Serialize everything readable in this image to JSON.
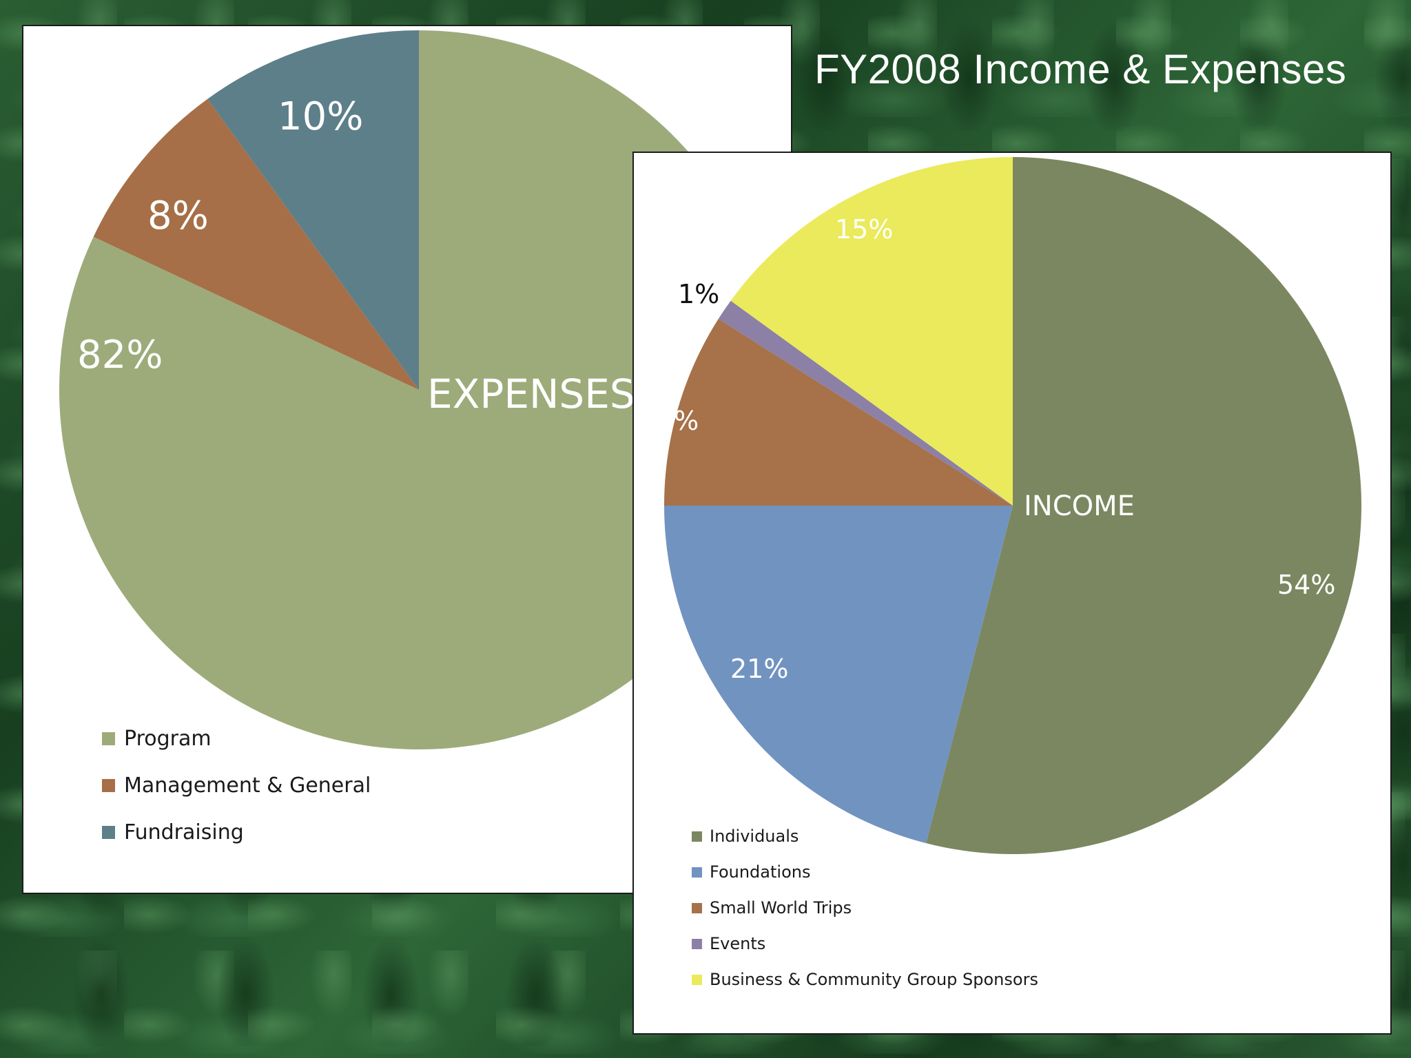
{
  "title": "FY2008 Income & Expenses",
  "colors": {
    "program": "#9dab7a",
    "management_general": "#a66f47",
    "fundraising": "#5d7f8a",
    "individuals": "#7b8760",
    "foundations": "#7193c0",
    "small_world_trips": "#a77149",
    "events": "#8c80a6",
    "business_community": "#eaea5c"
  },
  "chart_data": [
    {
      "type": "pie",
      "label": "EXPENSES",
      "slices": [
        {
          "name": "Program",
          "value": 82,
          "value_label": "82%"
        },
        {
          "name": "Management & General",
          "value": 8,
          "value_label": "8%"
        },
        {
          "name": "Fundraising",
          "value": 10,
          "value_label": "10%"
        }
      ],
      "legend": [
        "Program",
        "Management & General",
        "Fundraising"
      ],
      "legend_position": "bottom-left"
    },
    {
      "type": "pie",
      "label": "INCOME",
      "slices": [
        {
          "name": "Individuals",
          "value": 54,
          "value_label": "54%"
        },
        {
          "name": "Foundations",
          "value": 21,
          "value_label": "21%"
        },
        {
          "name": "Small World Trips",
          "value": 9,
          "value_label": "9%"
        },
        {
          "name": "Events",
          "value": 1,
          "value_label": "1%"
        },
        {
          "name": "Business & Community Group Sponsors",
          "value": 15,
          "value_label": "15%"
        }
      ],
      "legend": [
        "Individuals",
        "Foundations",
        "Small World Trips",
        "Events",
        "Business & Community Group Sponsors"
      ],
      "legend_position": "bottom-left"
    }
  ]
}
